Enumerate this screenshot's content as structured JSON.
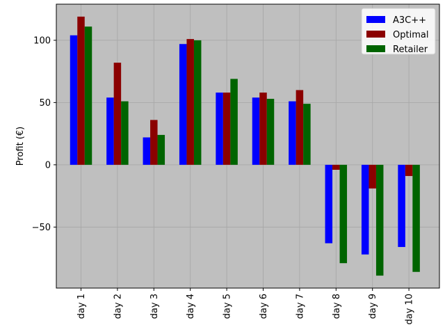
{
  "chart_data": {
    "type": "bar",
    "title": "",
    "xlabel": "",
    "ylabel": "Profit (€)",
    "categories": [
      "day 1",
      "day 2",
      "day 3",
      "day 4",
      "day 5",
      "day 6",
      "day 7",
      "day 8",
      "day 9",
      "day 10"
    ],
    "series": [
      {
        "name": "A3C++",
        "color": "#0000ff",
        "values": [
          104,
          54,
          22,
          97,
          58,
          54,
          51,
          -63,
          -72,
          -66
        ]
      },
      {
        "name": "Optimal",
        "color": "#8b0000",
        "values": [
          119,
          82,
          36,
          101,
          58,
          58,
          60,
          -4,
          -19,
          -9
        ]
      },
      {
        "name": "Retailer",
        "color": "#006400",
        "values": [
          111,
          51,
          24,
          100,
          69,
          53,
          49,
          -79,
          -89,
          -86
        ]
      }
    ],
    "ylim": [
      -99,
      129
    ],
    "yticks": [
      -50,
      0,
      50,
      100
    ],
    "ytick_labels": [
      "−50",
      "0",
      "50",
      "100"
    ],
    "grid": true,
    "background": "#bfbfbf",
    "legend_position": "top-right"
  }
}
